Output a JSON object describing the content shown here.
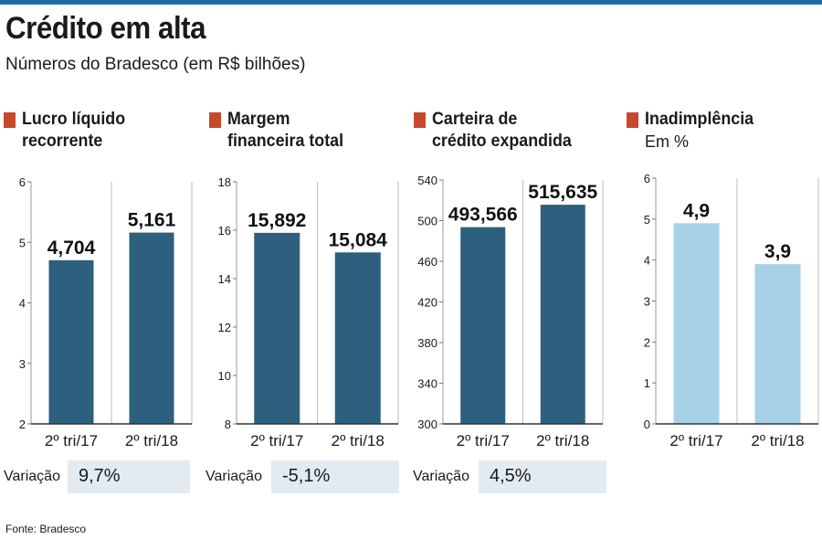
{
  "header": {
    "title": "Crédito em alta",
    "subtitle": "Números do Bradesco (em R$ bilhões)"
  },
  "footer": {
    "source": "Fonte: Bradesco"
  },
  "variation_label": "Variação",
  "colors": {
    "dark_bar": "#2d5f7e",
    "light_bar": "#a8d1e7",
    "marker": "#c8482d",
    "variation_box": "#e2ebf1",
    "top_rule": "#1f6ea8"
  },
  "panels": [
    {
      "title_lines": [
        "Lucro líquido",
        "recorrente"
      ],
      "sub": "",
      "variation": "9,7%"
    },
    {
      "title_lines": [
        "Margem",
        "financeira total"
      ],
      "sub": "",
      "variation": "-5,1%"
    },
    {
      "title_lines": [
        "Carteira de",
        "crédito expandida"
      ],
      "sub": "",
      "variation": "4,5%"
    },
    {
      "title_lines": [
        "Inadimplência"
      ],
      "sub": "Em %",
      "variation": ""
    }
  ],
  "chart_data": [
    {
      "type": "bar",
      "title": "Lucro líquido recorrente",
      "categories": [
        "2º tri/17",
        "2º tri/18"
      ],
      "values": [
        4.704,
        5.161
      ],
      "value_labels": [
        "4,704",
        "5,161"
      ],
      "ylim": [
        2,
        6
      ],
      "yticks": [
        "2",
        "3",
        "4",
        "5",
        "6"
      ],
      "bar_color": "#2d5f7e"
    },
    {
      "type": "bar",
      "title": "Margem financeira total",
      "categories": [
        "2º tri/17",
        "2º tri/18"
      ],
      "values": [
        15.892,
        15.084
      ],
      "value_labels": [
        "15,892",
        "15,084"
      ],
      "ylim": [
        8,
        18
      ],
      "yticks": [
        "8",
        "10",
        "12",
        "14",
        "16",
        "18"
      ],
      "bar_color": "#2d5f7e"
    },
    {
      "type": "bar",
      "title": "Carteira de crédito expandida",
      "categories": [
        "2º tri/17",
        "2º tri/18"
      ],
      "values": [
        493.566,
        515.635
      ],
      "value_labels": [
        "493,566",
        "515,635"
      ],
      "ylim": [
        300,
        540
      ],
      "yticks": [
        "300",
        "340",
        "380",
        "420",
        "460",
        "500",
        "540"
      ],
      "bar_color": "#2d5f7e"
    },
    {
      "type": "bar",
      "title": "Inadimplência",
      "categories": [
        "2º tri/17",
        "2º tri/18"
      ],
      "values": [
        4.9,
        3.9
      ],
      "value_labels": [
        "4,9",
        "3,9"
      ],
      "ylim": [
        0,
        6
      ],
      "yticks": [
        "0",
        "1",
        "2",
        "3",
        "4",
        "5",
        "6"
      ],
      "bar_color": "#a8d1e7"
    }
  ]
}
